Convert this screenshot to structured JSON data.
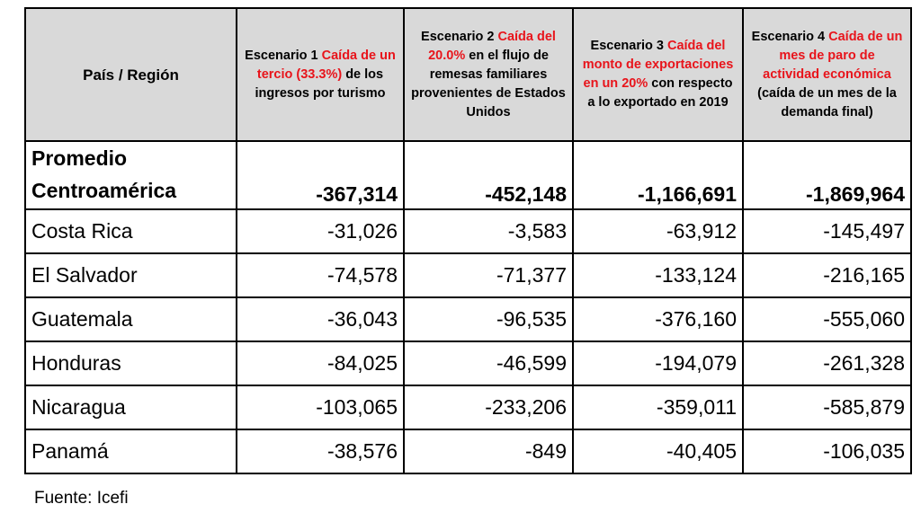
{
  "header": {
    "region": "País / Región",
    "scenarios": [
      {
        "label": "Escenario 1",
        "red": "Caída de un tercio (33.3%)",
        "rest": "de los ingresos por turismo"
      },
      {
        "label": "Escenario 2",
        "red": "Caída del 20.0%",
        "rest": "en el flujo de remesas familiares provenientes de Estados Unidos"
      },
      {
        "label": "Escenario 3",
        "red": "Caída del monto de exportaciones en un 20%",
        "rest": "con respecto a lo exportado en 2019"
      },
      {
        "label": "Escenario 4",
        "red": "Caída de un mes de paro de actividad económica",
        "rest": "(caída de un mes de la demanda final)"
      }
    ]
  },
  "average": {
    "name": "Promedio Centroamérica",
    "values": [
      "-367,314",
      "-452,148",
      "-1,166,691",
      "-1,869,964"
    ]
  },
  "rows": [
    {
      "name": "Costa Rica",
      "values": [
        "-31,026",
        "-3,583",
        "-63,912",
        "-145,497"
      ]
    },
    {
      "name": "El Salvador",
      "values": [
        "-74,578",
        "-71,377",
        "-133,124",
        "-216,165"
      ]
    },
    {
      "name": "Guatemala",
      "values": [
        "-36,043",
        "-96,535",
        "-376,160",
        "-555,060"
      ]
    },
    {
      "name": "Honduras",
      "values": [
        "-84,025",
        "-46,599",
        "-194,079",
        "-261,328"
      ]
    },
    {
      "name": "Nicaragua",
      "values": [
        "-103,065",
        "-233,206",
        "-359,011",
        "-585,879"
      ]
    },
    {
      "name": "Panamá",
      "values": [
        "-38,576",
        "-849",
        "-40,405",
        "-106,035"
      ]
    }
  ],
  "source": "Fuente: Icefi"
}
